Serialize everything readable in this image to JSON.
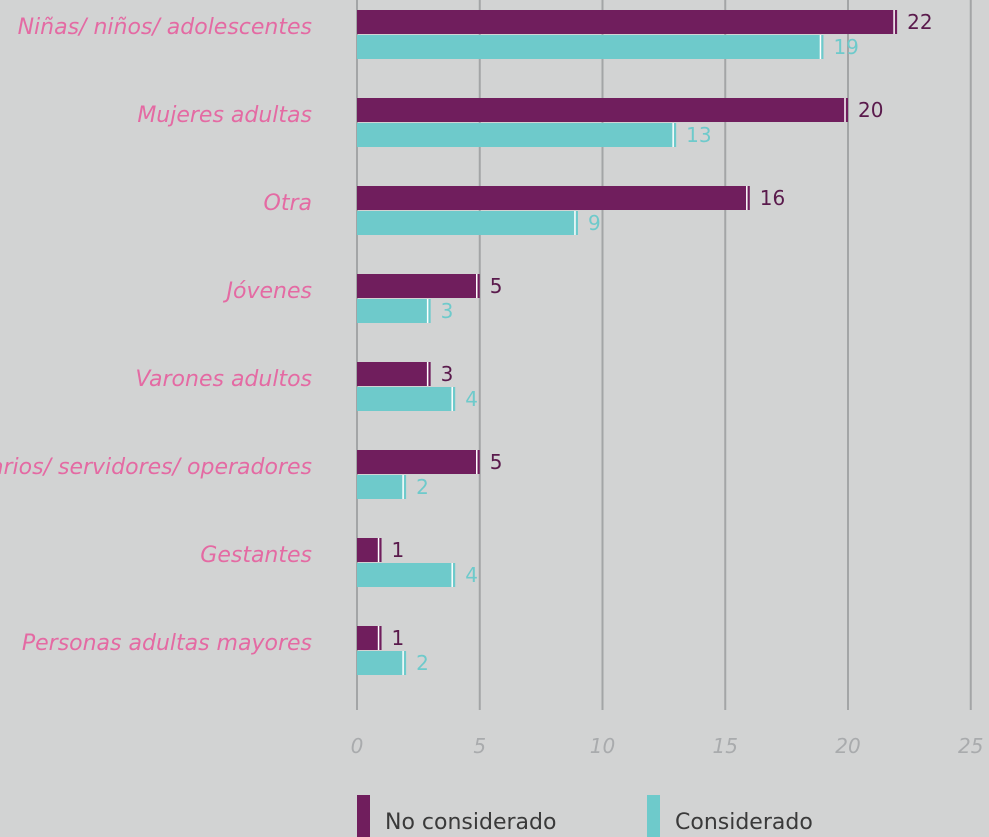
{
  "chart_data": {
    "type": "bar",
    "orientation": "horizontal",
    "categories": [
      "Niñas/ niños/ adolescentes",
      "Mujeres adultas",
      "Otra",
      "Jóvenes",
      "Varones adultos",
      "Funcionarios/ servidores/ operadores",
      "Gestantes",
      "Personas adultas mayores"
    ],
    "series": [
      {
        "name": "No considerado",
        "color": "#701e5d",
        "label_color": "#5a1a4c",
        "values": [
          22,
          20,
          16,
          5,
          3,
          5,
          1,
          1
        ]
      },
      {
        "name": "Considerado",
        "color": "#6ecacb",
        "label_color": "#6ecacb",
        "values": [
          19,
          13,
          9,
          3,
          4,
          2,
          4,
          2
        ]
      }
    ],
    "xlim": [
      0,
      25
    ],
    "xticks": [
      0,
      5,
      10,
      15,
      20,
      25
    ],
    "grid": true,
    "legend_position": "bottom",
    "category_label_color": "#e46aa3",
    "tick_label_color": "#a9abad",
    "background": "#d2d3d3"
  }
}
